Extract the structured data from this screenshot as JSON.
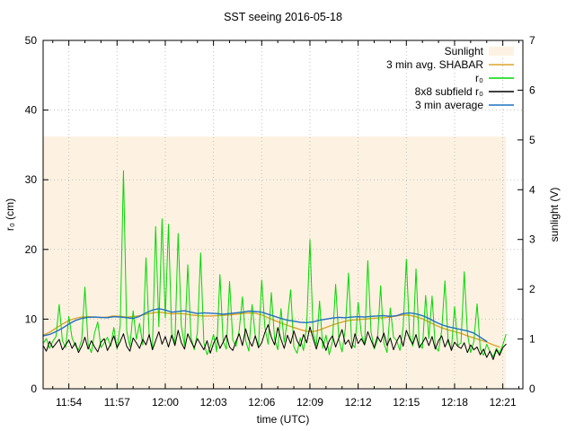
{
  "chart_data": {
    "type": "line",
    "title": "SST seeing 2016-05-18",
    "xlabel": "time (UTC)",
    "ylabel_left": "r₀ (cm)",
    "ylabel_right": "sunlight (V)",
    "x_domain_minutes": [
      112.4,
      142.25
    ],
    "x_major_ticks": [
      {
        "m": 114,
        "label": "11:54"
      },
      {
        "m": 117,
        "label": "11:57"
      },
      {
        "m": 120,
        "label": "12:00"
      },
      {
        "m": 123,
        "label": "12:03"
      },
      {
        "m": 126,
        "label": "12:06"
      },
      {
        "m": 129,
        "label": "12:09"
      },
      {
        "m": 132,
        "label": "12:12"
      },
      {
        "m": 135,
        "label": "12:15"
      },
      {
        "m": 138,
        "label": "12:18"
      },
      {
        "m": 141,
        "label": "12:21"
      }
    ],
    "x_minor_step_min": 1,
    "ylim_left": [
      0,
      50
    ],
    "ytick_step_left": 10,
    "ylim_right": [
      0,
      7
    ],
    "ytick_step_right": 1,
    "grid": true,
    "legend_position": "top-right-inside",
    "colors": {
      "sunlight_fill": "#fdf2e1",
      "shabar_avg": "#e0a32e",
      "r0": "#00d900",
      "subfield": "#000000",
      "avg3min": "#1f70c1",
      "grid": "#c0c0c0",
      "axis": "#000000"
    },
    "legend": [
      {
        "label": "Sunlight",
        "type": "fill",
        "color": "#fdf2e1"
      },
      {
        "label": "3 min avg. SHABAR",
        "type": "line",
        "color": "#e0a32e"
      },
      {
        "label": "r₀",
        "type": "line",
        "color": "#00d900"
      },
      {
        "label": "8x8 subfield r₀",
        "type": "line",
        "color": "#000000"
      },
      {
        "label": "3 min average",
        "type": "line",
        "color": "#1f70c1"
      }
    ],
    "sunlight": {
      "from_min": 112.4,
      "to_min": 141.2,
      "level_V": 5.07,
      "axis": "right"
    },
    "series": [
      {
        "name": "3 min avg. SHABAR",
        "slug": "shabar-avg",
        "axis": "left",
        "color": "#e0a32e",
        "width": 1.4,
        "t0_min": 112.4,
        "dt_min": 0.4,
        "values": [
          7.7,
          8.1,
          8.7,
          9.3,
          9.8,
          10.1,
          10.3,
          10.35,
          10.3,
          10.2,
          10.3,
          10.45,
          10.4,
          10.3,
          10.35,
          10.5,
          10.7,
          10.9,
          11.0,
          10.9,
          10.75,
          10.8,
          10.75,
          10.6,
          10.5,
          10.45,
          10.45,
          10.5,
          10.55,
          10.6,
          10.7,
          10.8,
          10.9,
          10.85,
          10.6,
          10.2,
          9.8,
          9.45,
          9.1,
          8.8,
          8.5,
          8.25,
          8.2,
          8.45,
          8.8,
          9.15,
          9.45,
          9.7,
          9.85,
          9.95,
          10.0,
          10.1,
          10.15,
          10.2,
          10.3,
          10.45,
          10.6,
          10.55,
          10.35,
          10.05,
          9.6,
          9.15,
          8.75,
          8.45,
          8.2,
          7.95,
          7.6,
          7.3,
          7.0,
          6.7,
          6.3,
          6.0
        ]
      },
      {
        "name": "r₀",
        "slug": "r0",
        "axis": "left",
        "color": "#00d900",
        "width": 1,
        "t0_min": 112.4,
        "dt_min": 0.2,
        "values": [
          6.5,
          7.2,
          5.8,
          6.8,
          7.5,
          12.1,
          6.9,
          5.9,
          10.4,
          7.3,
          6.2,
          5.6,
          7.0,
          14.6,
          6.4,
          5.2,
          8.0,
          9.6,
          5.9,
          6.6,
          7.4,
          6.1,
          8.8,
          5.7,
          9.2,
          31.3,
          8.3,
          6.0,
          11.2,
          7.1,
          9.4,
          6.3,
          18.8,
          7.7,
          5.8,
          23.3,
          8.9,
          24.4,
          10.2,
          23.6,
          7.9,
          6.5,
          22.3,
          9.0,
          6.2,
          17.8,
          7.4,
          5.6,
          8.1,
          19.5,
          6.6,
          4.9,
          6.0,
          7.8,
          5.3,
          16.4,
          6.8,
          5.7,
          15.4,
          7.0,
          6.1,
          8.4,
          13.2,
          6.9,
          5.4,
          12.1,
          7.6,
          6.2,
          15.6,
          8.8,
          6.4,
          13.8,
          7.2,
          5.6,
          11.5,
          6.7,
          9.8,
          14.2,
          6.0,
          5.1,
          7.3,
          5.5,
          9.1,
          21.4,
          8.0,
          6.2,
          12.6,
          5.8,
          7.7,
          4.9,
          6.8,
          15.0,
          7.1,
          5.3,
          8.6,
          16.6,
          6.5,
          5.9,
          12.4,
          7.8,
          6.3,
          18.4,
          8.2,
          5.7,
          7.0,
          14.8,
          6.6,
          5.2,
          11.6,
          7.4,
          6.9,
          5.5,
          8.8,
          18.6,
          7.7,
          6.1,
          17.2,
          6.4,
          5.8,
          13.4,
          7.2,
          13.3,
          6.0,
          5.4,
          8.4,
          15.5,
          6.7,
          5.6,
          11.8,
          6.2,
          6.6,
          16.8,
          7.9,
          5.2,
          6.8,
          12.2,
          5.7,
          4.8,
          6.4,
          5.3,
          4.6,
          5.8,
          5.1,
          6.3,
          7.8
        ]
      },
      {
        "name": "8x8 subfield r₀",
        "slug": "subfield-r0",
        "axis": "left",
        "color": "#000000",
        "width": 1,
        "t0_min": 112.4,
        "dt_min": 0.2,
        "values": [
          6.2,
          5.4,
          6.8,
          5.9,
          6.5,
          7.1,
          5.6,
          6.3,
          7.0,
          5.8,
          6.6,
          5.2,
          6.1,
          7.4,
          5.7,
          6.9,
          6.0,
          5.3,
          6.7,
          7.2,
          5.5,
          6.4,
          7.6,
          5.9,
          6.8,
          7.9,
          6.1,
          5.4,
          7.3,
          6.6,
          5.8,
          7.1,
          6.3,
          7.8,
          5.6,
          6.9,
          8.2,
          6.4,
          7.5,
          6.0,
          7.7,
          6.2,
          8.4,
          6.6,
          5.7,
          7.9,
          6.8,
          5.9,
          7.2,
          6.4,
          5.6,
          6.9,
          5.1,
          6.5,
          7.4,
          5.8,
          6.7,
          7.7,
          6.0,
          5.5,
          6.8,
          7.9,
          6.2,
          8.6,
          7.0,
          6.1,
          7.6,
          5.9,
          6.6,
          8.1,
          9.2,
          7.4,
          6.3,
          8.8,
          7.1,
          5.8,
          7.7,
          6.5,
          8.3,
          6.9,
          6.1,
          7.8,
          6.6,
          8.9,
          7.2,
          5.7,
          7.4,
          6.8,
          5.5,
          6.9,
          7.6,
          6.0,
          7.3,
          8.5,
          6.4,
          7.0,
          5.8,
          7.9,
          6.5,
          7.2,
          6.3,
          8.2,
          7.0,
          5.9,
          7.5,
          6.7,
          8.0,
          6.2,
          7.3,
          5.6,
          6.8,
          7.7,
          6.1,
          8.4,
          7.2,
          6.4,
          7.8,
          5.9,
          6.6,
          7.4,
          6.2,
          7.5,
          5.7,
          6.9,
          7.6,
          6.0,
          7.1,
          5.5,
          6.7,
          6.1,
          5.8,
          6.6,
          5.2,
          6.3,
          5.6,
          6.0,
          4.9,
          5.7,
          4.5,
          5.4,
          4.2,
          5.6,
          4.8,
          5.9,
          6.4
        ]
      },
      {
        "name": "3 min average",
        "slug": "avg-3min",
        "axis": "left",
        "color": "#1f70c1",
        "width": 1.4,
        "t0_min": 112.4,
        "dt_min": 0.4,
        "values": [
          7.6,
          7.8,
          8.2,
          8.7,
          9.3,
          9.8,
          10.1,
          10.25,
          10.3,
          10.25,
          10.2,
          10.35,
          10.3,
          10.2,
          10.1,
          10.4,
          10.9,
          11.3,
          11.5,
          11.3,
          11.0,
          11.1,
          11.2,
          11.0,
          10.8,
          10.9,
          10.85,
          10.8,
          10.7,
          10.8,
          10.9,
          11.0,
          11.15,
          11.1,
          11.0,
          10.7,
          10.4,
          10.1,
          9.85,
          9.7,
          9.55,
          9.5,
          9.6,
          9.85,
          10.0,
          10.15,
          10.25,
          10.2,
          10.3,
          10.35,
          10.3,
          10.4,
          10.45,
          10.5,
          10.4,
          10.5,
          10.8,
          10.9,
          10.75,
          10.5,
          10.1,
          9.6,
          9.2,
          8.9,
          8.7,
          8.5,
          8.3,
          8.0,
          7.4,
          6.8
        ]
      }
    ]
  }
}
